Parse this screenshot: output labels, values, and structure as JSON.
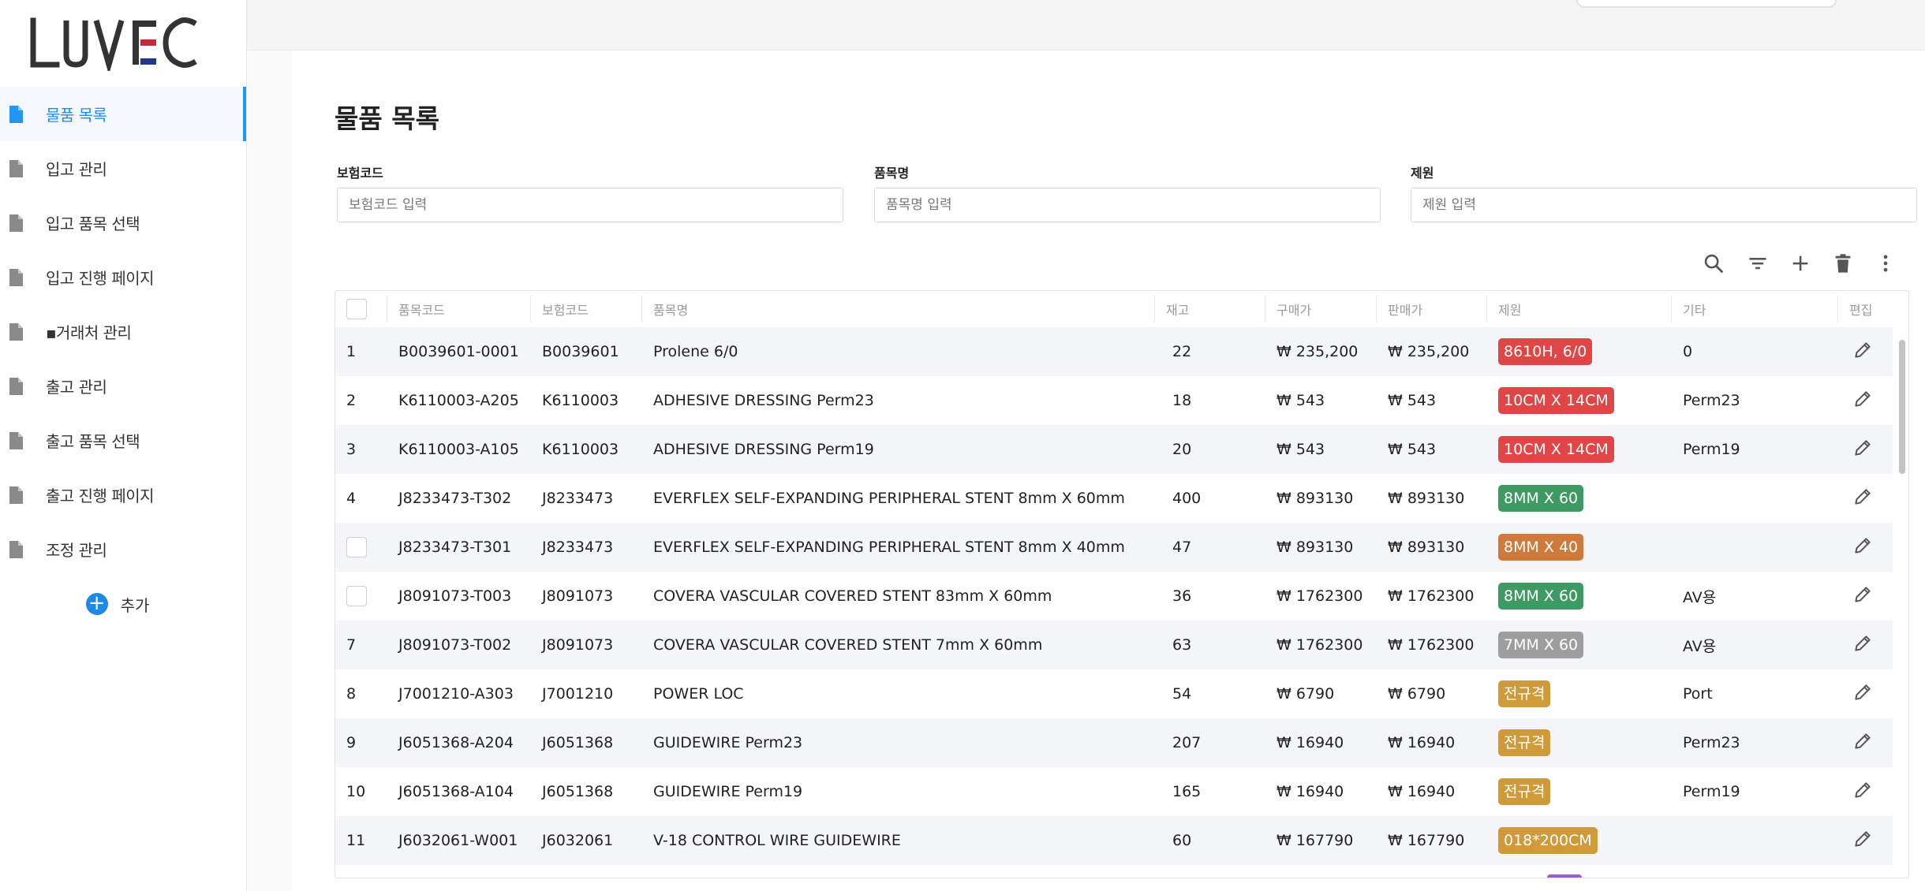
{
  "brand": {
    "logo_text": "LUVEC"
  },
  "sidebar": {
    "items": [
      {
        "label": "물품 목록",
        "active": true
      },
      {
        "label": "입고 관리"
      },
      {
        "label": "입고 품목 선택"
      },
      {
        "label": "입고 진행 페이지"
      },
      {
        "label": "▪거래처 관리"
      },
      {
        "label": "출고 관리"
      },
      {
        "label": "출고 품목 선택"
      },
      {
        "label": "출고 진행 페이지"
      },
      {
        "label": "조정 관리"
      }
    ],
    "add_label": "추가"
  },
  "main": {
    "title": "물품 목록",
    "filters": [
      {
        "label": "보험코드",
        "placeholder": "보험코드 입력"
      },
      {
        "label": "품목명",
        "placeholder": "품목명 입력"
      },
      {
        "label": "제원",
        "placeholder": "제원 입력"
      }
    ]
  },
  "table": {
    "columns": [
      "품목코드",
      "보험코드",
      "품목명",
      "재고",
      "구매가",
      "판매가",
      "제원",
      "기타",
      "편집"
    ],
    "rows": [
      {
        "no": "1",
        "code": "B0039601-0001",
        "ins": "B0039601",
        "name": "Prolene 6/0",
        "stock": "22",
        "buy": "₩ 235,200",
        "sell": "₩ 235,200",
        "spec": "8610H, 6/0",
        "spec_color": "#e04646",
        "etc": "0"
      },
      {
        "no": "2",
        "code": "K6110003-A205",
        "ins": "K6110003",
        "name": "ADHESIVE DRESSING Perm23",
        "stock": "18",
        "buy": "₩ 543",
        "sell": "₩ 543",
        "spec": "10CM X 14CM",
        "spec_color": "#e04646",
        "etc": "Perm23"
      },
      {
        "no": "3",
        "code": "K6110003-A105",
        "ins": "K6110003",
        "name": "ADHESIVE DRESSING Perm19",
        "stock": "20",
        "buy": "₩ 543",
        "sell": "₩ 543",
        "spec": "10CM X 14CM",
        "spec_color": "#e04646",
        "etc": "Perm19"
      },
      {
        "no": "4",
        "code": "J8233473-T302",
        "ins": "J8233473",
        "name": "EVERFLEX SELF-EXPANDING PERIPHERAL STENT 8mm X 60mm",
        "stock": "400",
        "buy": "₩ 893130",
        "sell": "₩ 893130",
        "spec": "8MM X 60",
        "spec_color": "#3d9a63",
        "etc": ""
      },
      {
        "no": "",
        "code": "J8233473-T301",
        "ins": "J8233473",
        "name": "EVERFLEX SELF-EXPANDING PERIPHERAL STENT 8mm X 40mm",
        "stock": "47",
        "buy": "₩ 893130",
        "sell": "₩ 893130",
        "spec": "8MM X 40",
        "spec_color": "#cf7a3a",
        "etc": ""
      },
      {
        "no": "",
        "code": "J8091073-T003",
        "ins": "J8091073",
        "name": "COVERA VASCULAR COVERED STENT 83mm X 60mm",
        "stock": "36",
        "buy": "₩ 1762300",
        "sell": "₩ 1762300",
        "spec": "8MM X 60",
        "spec_color": "#3d9a63",
        "etc": "AV용"
      },
      {
        "no": "7",
        "code": "J8091073-T002",
        "ins": "J8091073",
        "name": "COVERA VASCULAR COVERED STENT 7mm X 60mm",
        "stock": "63",
        "buy": "₩ 1762300",
        "sell": "₩ 1762300",
        "spec": "7MM X 60",
        "spec_color": "#9e9e9e",
        "etc": "AV용"
      },
      {
        "no": "8",
        "code": "J7001210-A303",
        "ins": "J7001210",
        "name": "POWER LOC",
        "stock": "54",
        "buy": "₩ 6790",
        "sell": "₩ 6790",
        "spec": "전규격",
        "spec_color": "#cf9a3a",
        "etc": "Port"
      },
      {
        "no": "9",
        "code": "J6051368-A204",
        "ins": "J6051368",
        "name": "GUIDEWIRE Perm23",
        "stock": "207",
        "buy": "₩ 16940",
        "sell": "₩ 16940",
        "spec": "전규격",
        "spec_color": "#cf9a3a",
        "etc": "Perm23"
      },
      {
        "no": "10",
        "code": "J6051368-A104",
        "ins": "J6051368",
        "name": "GUIDEWIRE Perm19",
        "stock": "165",
        "buy": "₩ 16940",
        "sell": "₩ 16940",
        "spec": "전규격",
        "spec_color": "#cf9a3a",
        "etc": "Perm19"
      },
      {
        "no": "11",
        "code": "J6032061-W001",
        "ins": "J6032061",
        "name": "V-18 CONTROL WIRE GUIDEWIRE",
        "stock": "60",
        "buy": "₩ 167790",
        "sell": "₩ 167790",
        "spec": "018*200CM",
        "spec_color": "#cf9a3a",
        "etc": ""
      }
    ]
  },
  "colors": {
    "accent": "#2196f3",
    "active_text": "#1a8cff"
  }
}
